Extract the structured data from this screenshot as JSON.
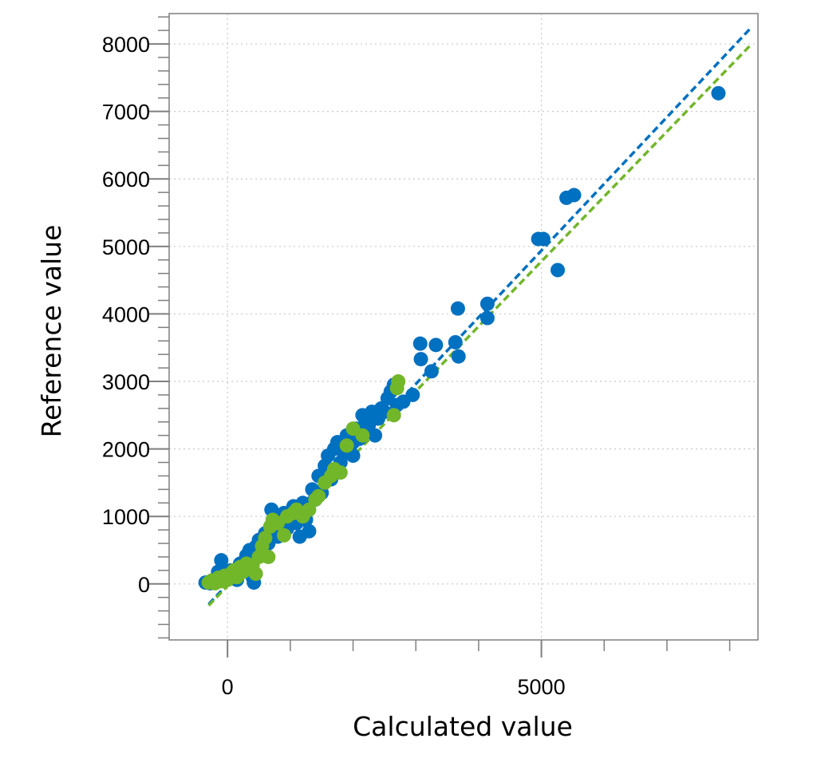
{
  "chart_data": {
    "type": "scatter",
    "title": "",
    "xlabel": "Calculated value",
    "ylabel": "Reference value",
    "xlim": [
      -930,
      8450
    ],
    "ylim": [
      -830,
      8450
    ],
    "x_ticks": [
      0,
      5000
    ],
    "x_minor_step": 1000,
    "y_ticks": [
      0,
      1000,
      2000,
      3000,
      4000,
      5000,
      6000,
      7000,
      8000
    ],
    "y_minor_step": 200,
    "grid": true,
    "legend": "none",
    "colors": {
      "blue": "#0070c0",
      "green": "#72b62a",
      "grid": "#c8c8c8",
      "axis": "#7f7f7f"
    },
    "series": [
      {
        "color": "#0070c0",
        "fit_line": {
          "x": [
            -300,
            8350
          ],
          "y": [
            -300,
            8250
          ]
        },
        "points": [
          [
            -350,
            20
          ],
          [
            -280,
            10
          ],
          [
            -200,
            40
          ],
          [
            -150,
            180
          ],
          [
            -100,
            350
          ],
          [
            -60,
            150
          ],
          [
            0,
            80
          ],
          [
            50,
            200
          ],
          [
            100,
            120
          ],
          [
            150,
            60
          ],
          [
            200,
            300
          ],
          [
            250,
            250
          ],
          [
            300,
            420
          ],
          [
            350,
            500
          ],
          [
            400,
            100
          ],
          [
            420,
            20
          ],
          [
            450,
            550
          ],
          [
            500,
            650
          ],
          [
            550,
            450
          ],
          [
            600,
            750
          ],
          [
            650,
            600
          ],
          [
            700,
            850
          ],
          [
            700,
            1100
          ],
          [
            750,
            950
          ],
          [
            800,
            700
          ],
          [
            850,
            880
          ],
          [
            900,
            1050
          ],
          [
            950,
            820
          ],
          [
            1000,
            1000
          ],
          [
            1050,
            1150
          ],
          [
            1100,
            900
          ],
          [
            1150,
            700
          ],
          [
            1200,
            1200
          ],
          [
            1250,
            950
          ],
          [
            1300,
            780
          ],
          [
            1350,
            1400
          ],
          [
            1400,
            1250
          ],
          [
            1450,
            1600
          ],
          [
            1500,
            1350
          ],
          [
            1550,
            1750
          ],
          [
            1600,
            1900
          ],
          [
            1650,
            1550
          ],
          [
            1700,
            2000
          ],
          [
            1750,
            2100
          ],
          [
            1800,
            1800
          ],
          [
            1850,
            1950
          ],
          [
            1900,
            2200
          ],
          [
            1950,
            2050
          ],
          [
            2000,
            1900
          ],
          [
            2050,
            2300
          ],
          [
            2100,
            2150
          ],
          [
            2150,
            2500
          ],
          [
            2200,
            2400
          ],
          [
            2250,
            2350
          ],
          [
            2300,
            2550
          ],
          [
            2350,
            2200
          ],
          [
            2400,
            2450
          ],
          [
            2450,
            2600
          ],
          [
            2500,
            2550
          ],
          [
            2550,
            2750
          ],
          [
            2600,
            2850
          ],
          [
            2650,
            2950
          ],
          [
            2700,
            2650
          ],
          [
            2800,
            2700
          ],
          [
            2950,
            2800
          ],
          [
            3070,
            3560
          ],
          [
            3080,
            3330
          ],
          [
            3250,
            3150
          ],
          [
            3320,
            3540
          ],
          [
            3630,
            3580
          ],
          [
            3680,
            3370
          ],
          [
            3670,
            4080
          ],
          [
            4140,
            4150
          ],
          [
            4140,
            3940
          ],
          [
            4950,
            5110
          ],
          [
            5030,
            5110
          ],
          [
            5260,
            4650
          ],
          [
            5400,
            5720
          ],
          [
            5520,
            5760
          ],
          [
            7820,
            7270
          ]
        ]
      },
      {
        "color": "#72b62a",
        "fit_line": {
          "x": [
            -300,
            8350
          ],
          "y": [
            -320,
            8000
          ]
        },
        "points": [
          [
            -300,
            20
          ],
          [
            -250,
            50
          ],
          [
            -200,
            10
          ],
          [
            -150,
            90
          ],
          [
            -100,
            40
          ],
          [
            -50,
            120
          ],
          [
            0,
            60
          ],
          [
            50,
            150
          ],
          [
            100,
            200
          ],
          [
            150,
            100
          ],
          [
            200,
            250
          ],
          [
            250,
            180
          ],
          [
            300,
            300
          ],
          [
            350,
            220
          ],
          [
            400,
            280
          ],
          [
            450,
            150
          ],
          [
            500,
            400
          ],
          [
            550,
            560
          ],
          [
            600,
            680
          ],
          [
            650,
            400
          ],
          [
            680,
            850
          ],
          [
            720,
            950
          ],
          [
            800,
            900
          ],
          [
            900,
            720
          ],
          [
            950,
            1000
          ],
          [
            1050,
            1050
          ],
          [
            1100,
            1100
          ],
          [
            1200,
            1000
          ],
          [
            1300,
            1100
          ],
          [
            1400,
            1250
          ],
          [
            1450,
            1300
          ],
          [
            1550,
            1500
          ],
          [
            1650,
            1600
          ],
          [
            1700,
            1700
          ],
          [
            1800,
            1650
          ],
          [
            1900,
            2050
          ],
          [
            2000,
            2300
          ],
          [
            2150,
            2200
          ],
          [
            2650,
            2500
          ],
          [
            2700,
            2900
          ],
          [
            2720,
            3000
          ]
        ]
      }
    ]
  }
}
